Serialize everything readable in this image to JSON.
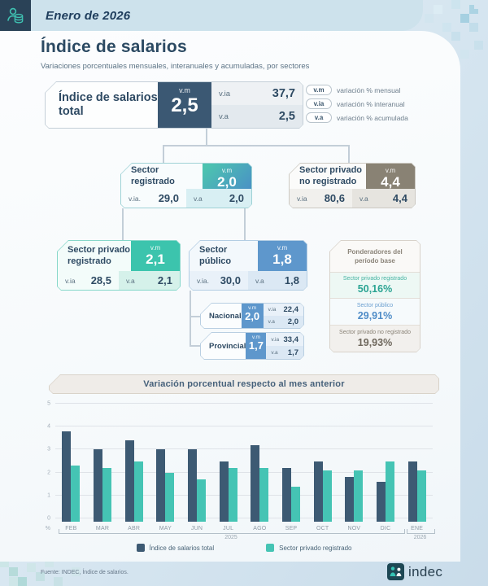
{
  "header": {
    "date": "Enero de 2026"
  },
  "page": {
    "title": "Índice de salarios",
    "subtitle": "Variaciones porcentuales mensuales, interanuales y acumuladas, por sectores"
  },
  "abbrev_legend": {
    "items": [
      {
        "abbr": "v.m",
        "label": "variación % mensual"
      },
      {
        "abbr": "v.ia",
        "label": "variación % interanual"
      },
      {
        "abbr": "v.a",
        "label": "variación % acumulada"
      }
    ]
  },
  "tree": {
    "total": {
      "name": "Índice de salarios total",
      "vm_label": "v.m",
      "vm": "2,5",
      "via_label": "v.ia",
      "via": "37,7",
      "va_label": "v.a",
      "va": "2,5"
    },
    "registrado": {
      "name": "Sector registrado",
      "vm_label": "v.m",
      "vm": "2,0",
      "via_label": "v.ia.",
      "via": "29,0",
      "va_label": "v.a",
      "va": "2,0"
    },
    "no_registrado": {
      "name": "Sector privado no registrado",
      "vm_label": "v.m",
      "vm": "4,4",
      "via_label": "v.ia",
      "via": "80,6",
      "va_label": "v.a",
      "va": "4,4"
    },
    "privado_registrado": {
      "name": "Sector privado registrado",
      "vm_label": "v.m",
      "vm": "2,1",
      "via_label": "v.ia",
      "via": "28,5",
      "va_label": "v.a",
      "va": "2,1"
    },
    "publico": {
      "name": "Sector público",
      "vm_label": "v.m",
      "vm": "1,8",
      "via_label": "v.ia.",
      "via": "30,0",
      "va_label": "v.a",
      "va": "1,8"
    },
    "nacional": {
      "name": "Nacional",
      "vm_label": "v.m",
      "vm": "2,0",
      "via_label": "v.ia",
      "via": "22,4",
      "va_label": "v.a",
      "va": "2,0"
    },
    "provincial": {
      "name": "Provincial",
      "vm_label": "v.m",
      "vm": "1,7",
      "via_label": "v.ia",
      "via": "33,4",
      "va_label": "v.a",
      "va": "1,7"
    }
  },
  "ponderadores": {
    "title": "Ponderadores del período base",
    "items": [
      {
        "label": "Sector privado registrado",
        "value": "50,16%"
      },
      {
        "label": "Sector público",
        "value": "29,91%"
      },
      {
        "label": "Sector privado no registrado",
        "value": "19,93%"
      }
    ]
  },
  "chart": {
    "title": "Variación porcentual respecto al mes anterior",
    "percent_label": "%",
    "year_left": "2025",
    "year_right": "2026"
  },
  "chart_data": {
    "type": "bar",
    "title": "Variación porcentual respecto al mes anterior",
    "categories": [
      "FEB",
      "MAR",
      "ABR",
      "MAY",
      "JUN",
      "JUL",
      "AGO",
      "SEP",
      "OCT",
      "NOV",
      "DIC",
      "ENE"
    ],
    "series": [
      {
        "name": "Índice de salarios total",
        "color": "#3d5a73",
        "values": [
          3.8,
          3.0,
          3.4,
          3.0,
          3.0,
          2.5,
          3.2,
          2.2,
          2.5,
          1.8,
          1.6,
          2.5
        ]
      },
      {
        "name": "Sector privado registrado",
        "color": "#45c4b4",
        "values": [
          2.3,
          2.2,
          2.5,
          2.0,
          1.7,
          2.2,
          2.2,
          1.4,
          2.1,
          2.1,
          2.5,
          2.1
        ]
      }
    ],
    "xlabel": "",
    "ylabel": "%",
    "ylim": [
      0,
      5
    ],
    "yticks": [
      0,
      1,
      2,
      3,
      4,
      5
    ],
    "x_year_groups": [
      {
        "label": "2025",
        "from": "FEB",
        "to": "DIC"
      },
      {
        "label": "2026",
        "from": "ENE",
        "to": "ENE"
      }
    ],
    "grid": true,
    "legend_position": "bottom"
  },
  "footer": {
    "source": "Fuente: INDEC, Índice de salarios.",
    "brand": "indec"
  },
  "colors": {
    "navy": "#3d5a73",
    "teal": "#45c4b4",
    "blue": "#5e97cc",
    "gray": "#898274",
    "band": "#cde2ec"
  }
}
